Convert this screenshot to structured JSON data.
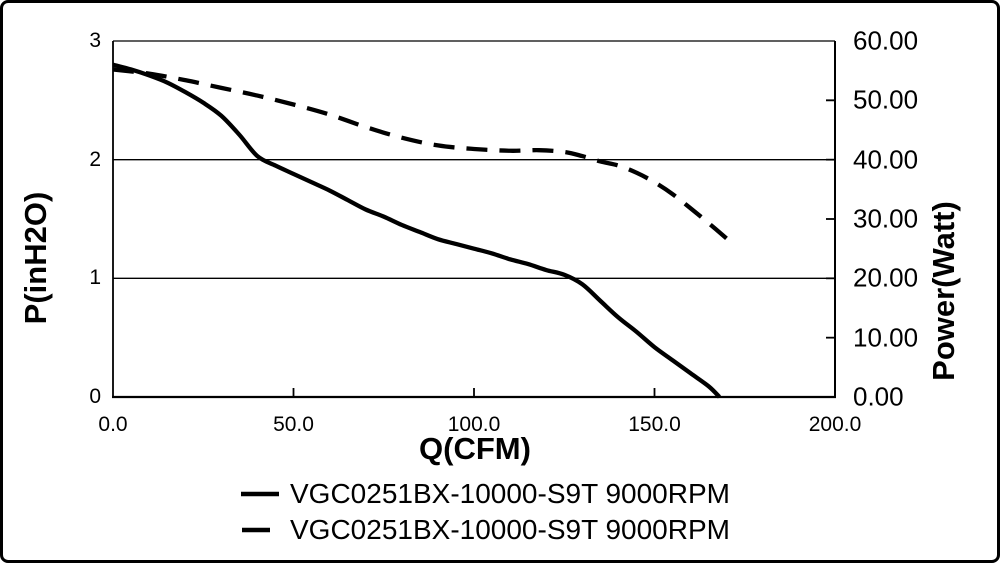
{
  "colors": {
    "line": "#000000",
    "background": "#ffffff",
    "border": "#000000"
  },
  "chart_data": {
    "type": "line",
    "title": "",
    "xlabel": "Q(CFM)",
    "ylabel_left": "P(inH2O)",
    "ylabel_right": "Power(Watt)",
    "x_range": [
      0,
      200
    ],
    "y_left_range": [
      0,
      3
    ],
    "y_right_range": [
      0,
      60
    ],
    "x_tick_values": [
      0,
      50,
      100,
      150,
      200
    ],
    "x_tick_labels": [
      "0.0",
      "50.0",
      "100.0",
      "150.0",
      "200.0"
    ],
    "y_left_tick_values": [
      0,
      1,
      2,
      3
    ],
    "y_left_tick_labels": [
      "0",
      "1",
      "2",
      "3"
    ],
    "y_right_tick_values": [
      0,
      10,
      20,
      30,
      40,
      50,
      60
    ],
    "y_right_tick_labels": [
      "0.00",
      "10.00",
      "20.00",
      "30.00",
      "40.00",
      "50.00",
      "60.00"
    ],
    "grid_left_values": [
      1,
      2,
      3
    ],
    "legend_position": "bottom",
    "line_color": "#000000",
    "series": [
      {
        "name": "VGC0251BX-10000-S9T 9000RPM",
        "style": "solid",
        "axis": "left",
        "unit": "inH2O",
        "points": [
          [
            0,
            2.8
          ],
          [
            5,
            2.76
          ],
          [
            10,
            2.71
          ],
          [
            15,
            2.65
          ],
          [
            20,
            2.57
          ],
          [
            25,
            2.48
          ],
          [
            30,
            2.37
          ],
          [
            35,
            2.21
          ],
          [
            40,
            2.03
          ],
          [
            45,
            1.95
          ],
          [
            50,
            1.88
          ],
          [
            55,
            1.81
          ],
          [
            60,
            1.74
          ],
          [
            65,
            1.66
          ],
          [
            70,
            1.58
          ],
          [
            75,
            1.52
          ],
          [
            80,
            1.45
          ],
          [
            85,
            1.39
          ],
          [
            90,
            1.33
          ],
          [
            95,
            1.29
          ],
          [
            100,
            1.25
          ],
          [
            105,
            1.21
          ],
          [
            110,
            1.16
          ],
          [
            115,
            1.12
          ],
          [
            120,
            1.07
          ],
          [
            125,
            1.03
          ],
          [
            130,
            0.95
          ],
          [
            135,
            0.81
          ],
          [
            140,
            0.67
          ],
          [
            145,
            0.55
          ],
          [
            150,
            0.42
          ],
          [
            155,
            0.31
          ],
          [
            160,
            0.2
          ],
          [
            165,
            0.09
          ],
          [
            168,
            0.0
          ]
        ]
      },
      {
        "name": "VGC0251BX-10000-S9T 9000RPM",
        "style": "dashed",
        "axis": "right",
        "unit": "Watt",
        "points": [
          [
            0,
            55.2
          ],
          [
            10,
            54.5
          ],
          [
            20,
            53.4
          ],
          [
            30,
            52.1
          ],
          [
            40,
            50.8
          ],
          [
            50,
            49.3
          ],
          [
            60,
            47.6
          ],
          [
            70,
            45.5
          ],
          [
            80,
            43.7
          ],
          [
            90,
            42.4
          ],
          [
            100,
            41.8
          ],
          [
            110,
            41.5
          ],
          [
            118,
            41.6
          ],
          [
            125,
            41.3
          ],
          [
            130,
            40.6
          ],
          [
            135,
            39.7
          ],
          [
            140,
            39.0
          ],
          [
            145,
            37.8
          ],
          [
            150,
            36.2
          ],
          [
            155,
            34.2
          ],
          [
            160,
            31.8
          ],
          [
            165,
            29.3
          ],
          [
            170,
            26.7
          ]
        ]
      }
    ]
  }
}
